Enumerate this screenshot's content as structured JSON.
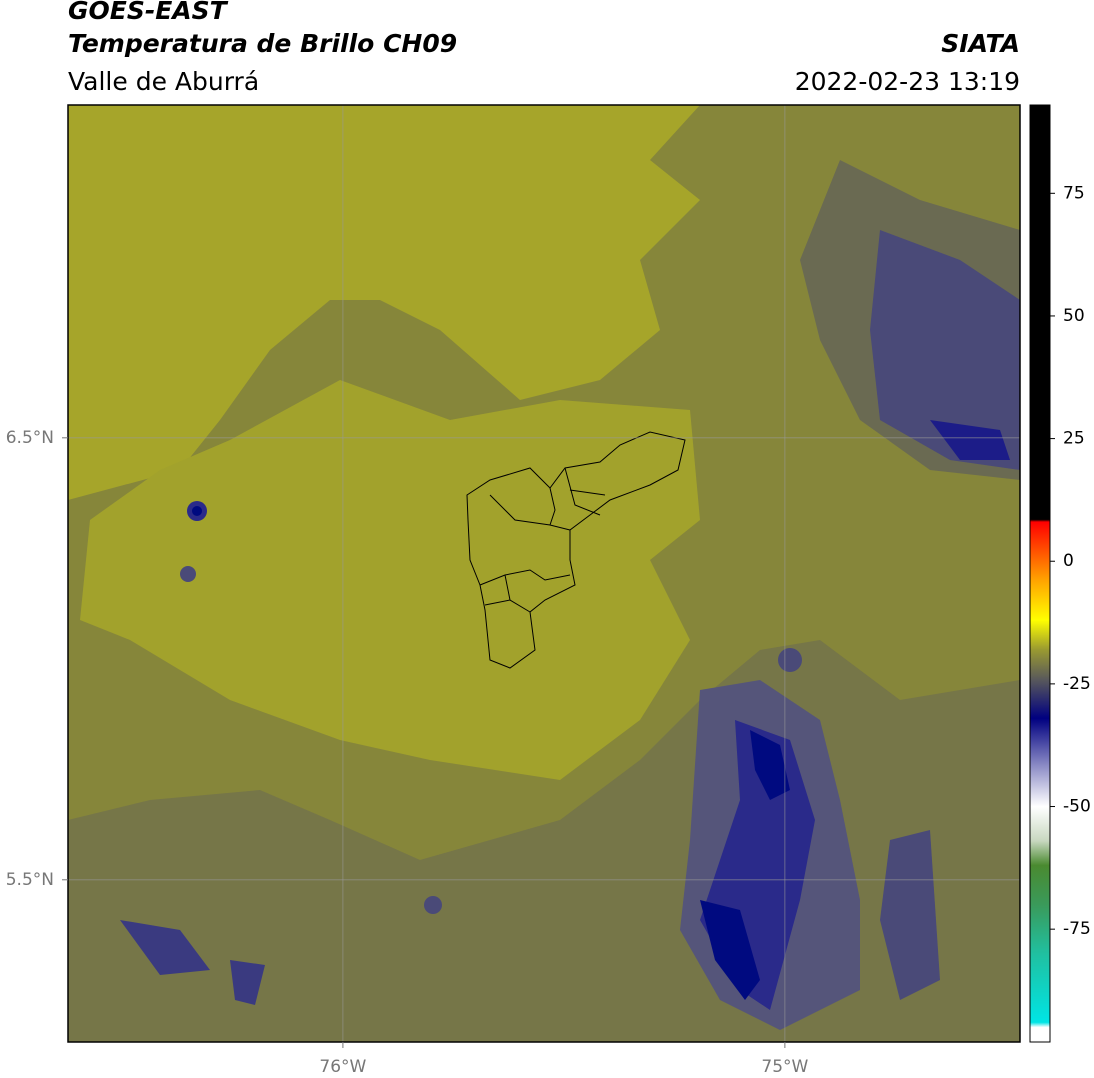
{
  "header": {
    "title": "GOES-EAST",
    "subtitle": "Temperatura de Brillo CH09",
    "region": "Valle de Aburrá",
    "source": "SIATA",
    "datetime": "2022-02-23 13:19"
  },
  "map": {
    "lon_lim": [
      -76.622,
      -74.468
    ],
    "lat_lim": [
      5.133,
      7.253
    ],
    "lon_ticks": [
      {
        "value": -76,
        "label": "76°W"
      },
      {
        "value": -75,
        "label": "75°W"
      }
    ],
    "lat_ticks": [
      {
        "value": 6.5,
        "label": "6.5°N"
      },
      {
        "value": 5.5,
        "label": "5.5°N"
      }
    ]
  },
  "colorbar": {
    "lim": [
      -98,
      93
    ],
    "ticks": [
      75,
      50,
      25,
      0,
      -25,
      -50,
      -75
    ],
    "stops": [
      {
        "value": -98,
        "color": "#ffffff"
      },
      {
        "value": -95,
        "color": "#ffffff"
      },
      {
        "value": -94,
        "color": "#00e5e5"
      },
      {
        "value": -80,
        "color": "#20c0a0"
      },
      {
        "value": -70,
        "color": "#3a9a5a"
      },
      {
        "value": -62,
        "color": "#4a8a30"
      },
      {
        "value": -57,
        "color": "#c8d8c0"
      },
      {
        "value": -50,
        "color": "#ffffff"
      },
      {
        "value": -42,
        "color": "#9090c8"
      },
      {
        "value": -32,
        "color": "#000080"
      },
      {
        "value": -24,
        "color": "#5a5a5a"
      },
      {
        "value": -18,
        "color": "#9a9a30"
      },
      {
        "value": -12,
        "color": "#ffff00"
      },
      {
        "value": -4,
        "color": "#ffa500"
      },
      {
        "value": 8,
        "color": "#ff0000"
      },
      {
        "value": 8.5,
        "color": "#000000"
      },
      {
        "value": 93,
        "color": "#000000"
      }
    ]
  }
}
